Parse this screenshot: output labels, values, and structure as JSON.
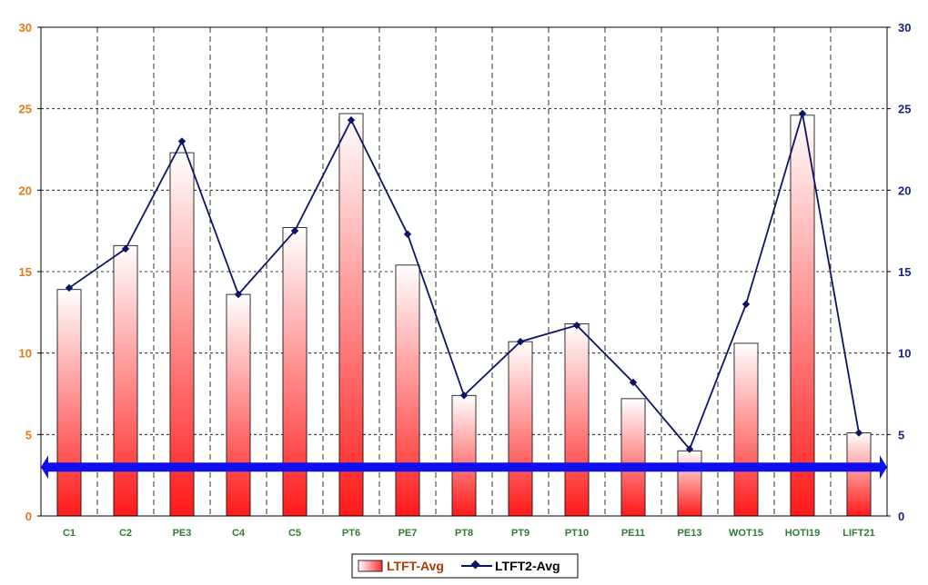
{
  "chart_data": {
    "type": "bar",
    "categories": [
      "C1",
      "C2",
      "PE3",
      "C4",
      "C5",
      "PT6",
      "PE7",
      "PT8",
      "PT9",
      "PT10",
      "PE11",
      "PE13",
      "WOT15",
      "HOTI19",
      "LIFT21"
    ],
    "series": [
      {
        "name": "LTFT-Avg",
        "type": "bar",
        "values": [
          13.9,
          16.6,
          22.3,
          13.6,
          17.7,
          24.7,
          15.4,
          7.4,
          10.7,
          11.8,
          7.2,
          4.0,
          10.6,
          24.6,
          5.1
        ]
      },
      {
        "name": "LTFT2-Avg",
        "type": "line",
        "values": [
          14.0,
          16.4,
          23.0,
          13.6,
          17.5,
          24.3,
          17.3,
          7.4,
          10.7,
          11.7,
          8.2,
          4.1,
          13.0,
          24.7,
          5.1
        ]
      }
    ],
    "reference_band": {
      "value": 3.0,
      "style": "double-headed arrow"
    },
    "ylim": [
      0,
      30
    ],
    "y_ticks": [
      "0",
      "5",
      "10",
      "15",
      "20",
      "25",
      "30"
    ],
    "y2lim": [
      0,
      30
    ],
    "y2_ticks": [
      "0",
      "5",
      "10",
      "15",
      "20",
      "25",
      "30"
    ],
    "grid": true,
    "legend_position": "bottom-center",
    "colors": {
      "left_axis": "#e07a1a",
      "right_axis": "#1a237e",
      "category_labels": "#2e7d32",
      "bar_top": "#ffffff",
      "bar_bottom": "#ff1a1a",
      "line": "#0d1466",
      "arrow": "#1010ee",
      "legend_bar_text": "#b03a00",
      "legend_line_text": "#000000"
    }
  }
}
